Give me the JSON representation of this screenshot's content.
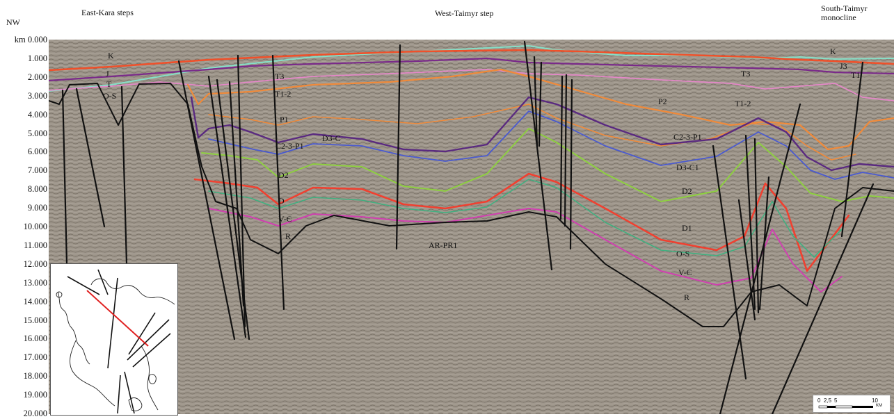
{
  "header": {
    "left_region": "East-Kara steps",
    "center_region": "West-Taimyr step",
    "right_region_line1": "South-Taimyr",
    "right_region_line2": "monocline",
    "orientation": "NW"
  },
  "depth_axis": {
    "unit": "km",
    "ticks": [
      "0.000",
      "1.000",
      "2.000",
      "3.000",
      "4.000",
      "5.000",
      "6.000",
      "7.000",
      "8.000",
      "9.000",
      "10.000",
      "11.000",
      "12.000",
      "13.000",
      "14.000",
      "15.000",
      "16.000",
      "17.000",
      "18.000",
      "19.000",
      "20.000"
    ]
  },
  "unit_labels": {
    "k_left": "K",
    "j_left": "J",
    "t_left": "T",
    "os_left": "O-S",
    "t3": "T3",
    "t12": "T1-2",
    "p1": "P1",
    "c23p1": "C2-3-P1",
    "d3c": "D3-C",
    "d2": "D2",
    "d": "D",
    "ve": "V-Є",
    "r_left": "R",
    "arpr": "AR-PR1",
    "p2": "P2",
    "t3_right": "T3",
    "t12_right": "T1-2",
    "c23p1_right": "C2-3-P1",
    "d3c1": "D3-C1",
    "d2_right": "D2",
    "d1": "D1",
    "os_right": "O-S",
    "ve_right": "V-Є",
    "r_right": "R",
    "k_right": "K",
    "j_right": "J3",
    "t_right": "T1"
  },
  "scale_bar": {
    "labels": [
      "0",
      "2,5",
      "5",
      "10"
    ],
    "unit": "KM"
  },
  "colors": {
    "background": "#9d958a",
    "k_top": "#86e0c8",
    "k_base": "#f0502a",
    "j": "#7a2a8a",
    "t": "#e488c8",
    "p": "#f08a3a",
    "c": "#5a2a80",
    "d3": "#4a5ad0",
    "d2": "#8ed040",
    "d": "#f04030",
    "os": "#40b080",
    "ve": "#d040b0",
    "basement": "#111111"
  }
}
